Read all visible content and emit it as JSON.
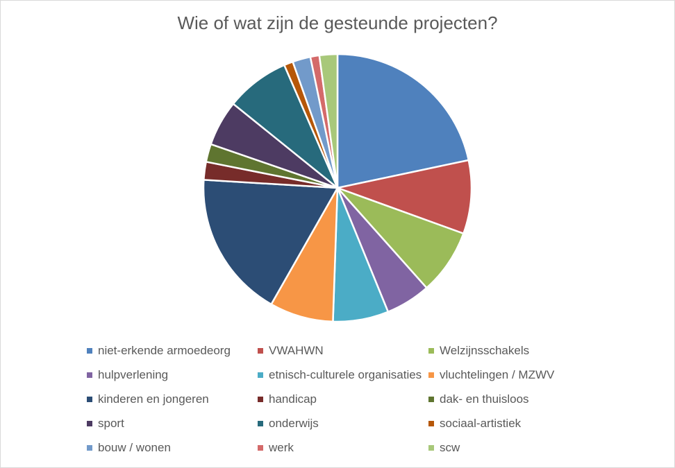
{
  "chart_data": {
    "type": "pie",
    "title": "Wie of wat zijn de gesteunde projecten?",
    "categories": [
      "niet-erkende armoedeorg",
      "VWAHWN",
      "Welzijnsschakels",
      "hulpverlening",
      "etnisch-culturele organisaties",
      "vluchtelingen / MZWV",
      "kinderen en jongeren",
      "handicap",
      "dak- en thuisloos",
      "sport",
      "onderwijs",
      "sociaal-artistiek",
      "bouw / wonen",
      "werk",
      "scw"
    ],
    "values": [
      22,
      9,
      8,
      5.5,
      6.8,
      7.8,
      18,
      2.2,
      2.2,
      5.6,
      7.8,
      1.1,
      2.2,
      1.1,
      2.2
    ],
    "colors": [
      "#4F81BD",
      "#C0504D",
      "#9BBB59",
      "#8064A2",
      "#4BACC6",
      "#F79646",
      "#2C4D75",
      "#772C2A",
      "#5F7530",
      "#4D3B62",
      "#276A7C",
      "#B65708",
      "#729ACA",
      "#D46A6A",
      "#A8C87A"
    ],
    "legend_position": "bottom"
  }
}
